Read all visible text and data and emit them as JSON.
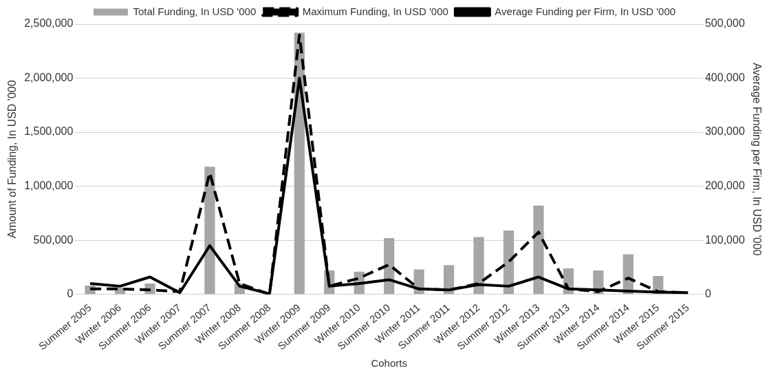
{
  "chart_data": {
    "type": "bar",
    "xlabel": "Cohorts",
    "ylabel": "Amount of Funding, In USD '000",
    "y2label": "Average Funding per Firm, In USD '000",
    "categories": [
      "Summer 2005",
      "Winter 2006",
      "Summer 2006",
      "Winter 2007",
      "Summer 2007",
      "Winter 2008",
      "Summer 2008",
      "Winter 2009",
      "Summer 2009",
      "Winter 2010",
      "Summer 2010",
      "Winter 2011",
      "Summer 2011",
      "Winter 2012",
      "Summer 2012",
      "Winter 2013",
      "Summer 2013",
      "Winter 2014",
      "Summer 2014",
      "Winter 2015",
      "Summer 2015"
    ],
    "series": [
      {
        "name": "Total Funding, In USD '000",
        "color": "#a6a6a6",
        "values": [
          80000,
          60000,
          100000,
          null,
          1180000,
          100000,
          null,
          2420000,
          220000,
          210000,
          520000,
          230000,
          270000,
          530000,
          590000,
          820000,
          240000,
          220000,
          370000,
          170000,
          null
        ]
      },
      {
        "name": "Maximum Funding, In USD '000",
        "type": "line",
        "axis": "y2",
        "line_style": "dashed",
        "color": "#000000",
        "values": [
          10000,
          10000,
          8000,
          5000,
          225000,
          20000,
          0,
          480000,
          15000,
          30000,
          55000,
          10000,
          8000,
          20000,
          60000,
          115000,
          10000,
          5000,
          30000,
          5000,
          3000
        ]
      },
      {
        "name": "Average Funding per Firm, In USD '000",
        "type": "line",
        "axis": "y2",
        "line_style": "solid",
        "color": "#000000",
        "values": [
          20000,
          15000,
          32000,
          3000,
          90000,
          15000,
          1000,
          400000,
          15000,
          20000,
          27000,
          10000,
          8000,
          18000,
          15000,
          32000,
          10000,
          8000,
          6000,
          4000,
          3000
        ]
      }
    ],
    "ylim": [
      0,
      2500000
    ],
    "yticks": [
      0,
      {
        "value": 500000,
        "label": "500,000"
      },
      {
        "value": 1000000,
        "label": "1,000,000"
      },
      {
        "value": 1500000,
        "label": "1,500,000"
      },
      {
        "value": 2000000,
        "label": "2,000,000"
      },
      {
        "value": 2500000,
        "label": "2,500,000"
      }
    ],
    "y2lim": [
      0,
      500000
    ],
    "y2ticks": [
      0,
      {
        "value": 100000,
        "label": "100,000"
      },
      {
        "value": 200000,
        "label": "200,000"
      },
      {
        "value": 300000,
        "label": "300,000"
      },
      {
        "value": 400000,
        "label": "400,000"
      },
      {
        "value": 500000,
        "label": "500,000"
      }
    ],
    "grid": "y",
    "legend": "top",
    "marker": "none"
  }
}
